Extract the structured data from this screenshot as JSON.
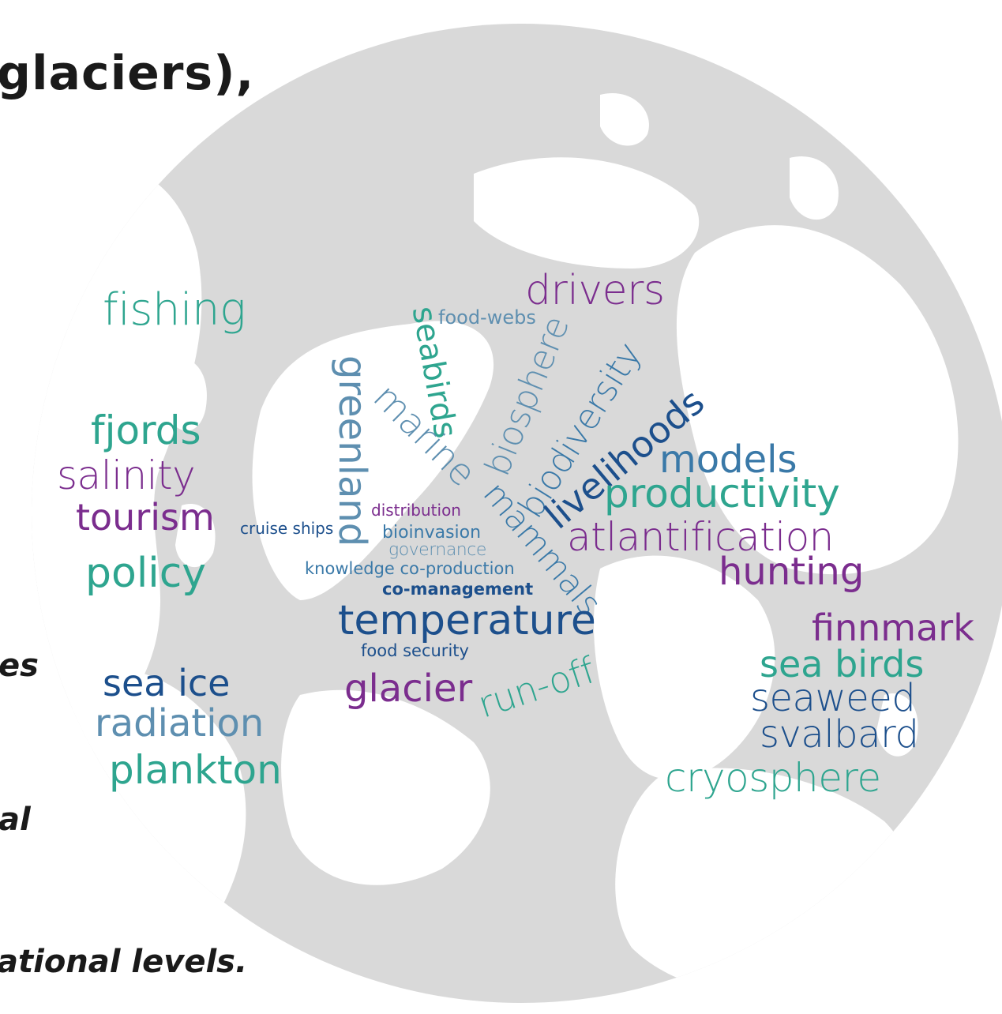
{
  "slide": {
    "title_fragment": "glaciers),",
    "line_fragments": [
      "es",
      "al",
      "ational levels."
    ]
  },
  "word_cloud": {
    "words": [
      {
        "text": "fishing",
        "color": "#2ea58f"
      },
      {
        "text": "fjords",
        "color": "#2ea58f"
      },
      {
        "text": "salinity",
        "color": "#7b2d8e"
      },
      {
        "text": "tourism",
        "color": "#7b2d8e"
      },
      {
        "text": "policy",
        "color": "#2ea58f"
      },
      {
        "text": "sea ice",
        "color": "#1c4f8c"
      },
      {
        "text": "radiation",
        "color": "#5e8fb0"
      },
      {
        "text": "plankton",
        "color": "#2ea58f"
      },
      {
        "text": "drivers",
        "color": "#7b2d8e"
      },
      {
        "text": "food-webs",
        "color": "#5e8fb0"
      },
      {
        "text": "seabirds",
        "color": "#2ea58f"
      },
      {
        "text": "biosphere",
        "color": "#5e8fb0"
      },
      {
        "text": "biodiversity",
        "color": "#3a79a8"
      },
      {
        "text": "greenland",
        "color": "#5e8fb0"
      },
      {
        "text": "marine",
        "color": "#5e8fb0"
      },
      {
        "text": "livelihoods",
        "color": "#1c4f8c"
      },
      {
        "text": "mammals",
        "color": "#3a79a8"
      },
      {
        "text": "models",
        "color": "#3a79a8"
      },
      {
        "text": "productivity",
        "color": "#2ea58f"
      },
      {
        "text": "atlantification",
        "color": "#7b2d8e"
      },
      {
        "text": "hunting",
        "color": "#7b2d8e"
      },
      {
        "text": "distribution",
        "color": "#7b2d8e"
      },
      {
        "text": "cruise ships",
        "color": "#1c4f8c"
      },
      {
        "text": "bioinvasion",
        "color": "#3a79a8"
      },
      {
        "text": "governance",
        "color": "#5e8fb0"
      },
      {
        "text": "knowledge co-production",
        "color": "#3a79a8"
      },
      {
        "text": "co-management",
        "color": "#1c4f8c"
      },
      {
        "text": "temperature",
        "color": "#1c4f8c"
      },
      {
        "text": "food security",
        "color": "#1c4f8c"
      },
      {
        "text": "glacier",
        "color": "#7b2d8e"
      },
      {
        "text": "run-off",
        "color": "#2ea58f"
      },
      {
        "text": "finnmark",
        "color": "#7b2d8e"
      },
      {
        "text": "sea birds",
        "color": "#2ea58f"
      },
      {
        "text": "seaweed",
        "color": "#1c4f8c"
      },
      {
        "text": "svalbard",
        "color": "#1c4f8c"
      },
      {
        "text": "cryosphere",
        "color": "#2ea58f"
      }
    ]
  },
  "globe": {
    "ocean_color": "#d9d9d9",
    "land_color": "#ffffff",
    "icon": "arctic-globe-icon"
  }
}
